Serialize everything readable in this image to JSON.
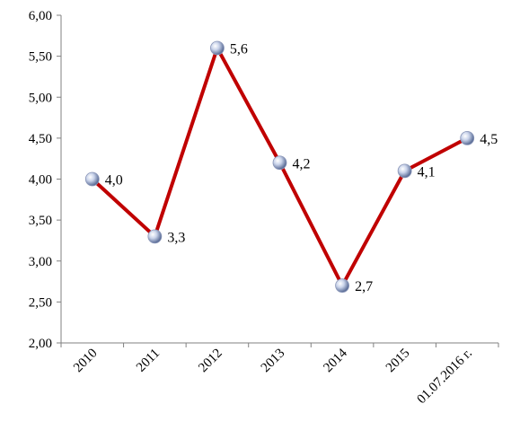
{
  "chart_data": {
    "type": "line",
    "categories": [
      "2010",
      "2011",
      "2012",
      "2013",
      "2014",
      "2015",
      "01.07.2016 г."
    ],
    "values": [
      4.0,
      3.3,
      5.6,
      4.2,
      2.7,
      4.1,
      4.5
    ],
    "data_labels": [
      "4,0",
      "3,3",
      "5,6",
      "4,2",
      "2,7",
      "4,1",
      "4,5"
    ],
    "y_ticks": [
      "2,00",
      "2,50",
      "3,00",
      "3,50",
      "4,00",
      "4,50",
      "5,00",
      "5,50",
      "6,00"
    ],
    "ylim": [
      2.0,
      6.0
    ],
    "grid": false,
    "line_color": "#c00000",
    "marker_color": "#b8c4e0"
  }
}
